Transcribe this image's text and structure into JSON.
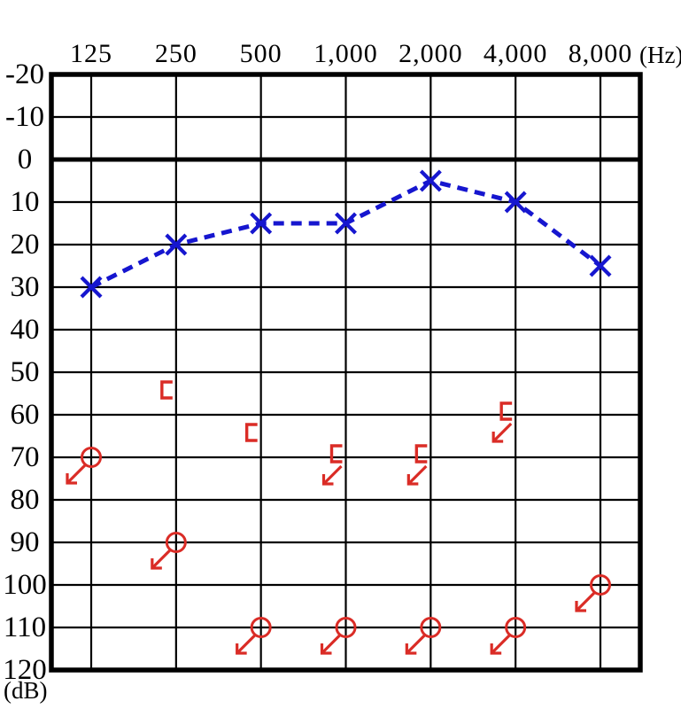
{
  "axes": {
    "freq_labels": [
      "125",
      "250",
      "500",
      "1,000",
      "2,000",
      "4,000",
      "8,000"
    ],
    "freq_unit": "(Hz)",
    "db_tick_labels": [
      "-20",
      "-10",
      "0",
      "10",
      "20",
      "30",
      "40",
      "50",
      "60",
      "70",
      "80",
      "90",
      "100",
      "110",
      "120"
    ],
    "db_unit": "(dB)",
    "db_min": -20,
    "db_max": 120,
    "db_step": 10,
    "bold_db_line": 0
  },
  "colors": {
    "blue": "#1616cf",
    "red": "#da2c26",
    "grid": "#000000"
  },
  "chart_data": {
    "type": "line",
    "title": "",
    "xlabel": "(Hz)",
    "ylabel": "(dB)",
    "x": [
      125,
      250,
      500,
      1000,
      2000,
      4000,
      8000
    ],
    "ylim": [
      -20,
      120
    ],
    "y_inverted": true,
    "grid": true,
    "series": [
      {
        "name": "air-conduction-x-symbols",
        "marker": "x",
        "line": "dashed",
        "color_key": "blue",
        "values": [
          30,
          20,
          15,
          15,
          5,
          10,
          25
        ]
      },
      {
        "name": "air-conduction-circles-no-response",
        "marker": "circle",
        "line": "none",
        "color_key": "red",
        "points": [
          {
            "freq": 125,
            "db": 70,
            "no_response": true
          },
          {
            "freq": 250,
            "db": 90,
            "no_response": true
          },
          {
            "freq": 500,
            "db": 110,
            "no_response": true
          },
          {
            "freq": 1000,
            "db": 110,
            "no_response": true
          },
          {
            "freq": 2000,
            "db": 110,
            "no_response": true
          },
          {
            "freq": 4000,
            "db": 110,
            "no_response": true
          },
          {
            "freq": 8000,
            "db": 100,
            "no_response": true
          }
        ]
      },
      {
        "name": "bone-conduction-brackets",
        "marker": "bracket",
        "line": "none",
        "color_key": "red",
        "points": [
          {
            "freq": 250,
            "db": 55,
            "no_response": false
          },
          {
            "freq": 500,
            "db": 65,
            "no_response": false
          },
          {
            "freq": 1000,
            "db": 70,
            "no_response": true
          },
          {
            "freq": 2000,
            "db": 70,
            "no_response": true
          },
          {
            "freq": 4000,
            "db": 60,
            "no_response": true
          }
        ]
      }
    ]
  }
}
